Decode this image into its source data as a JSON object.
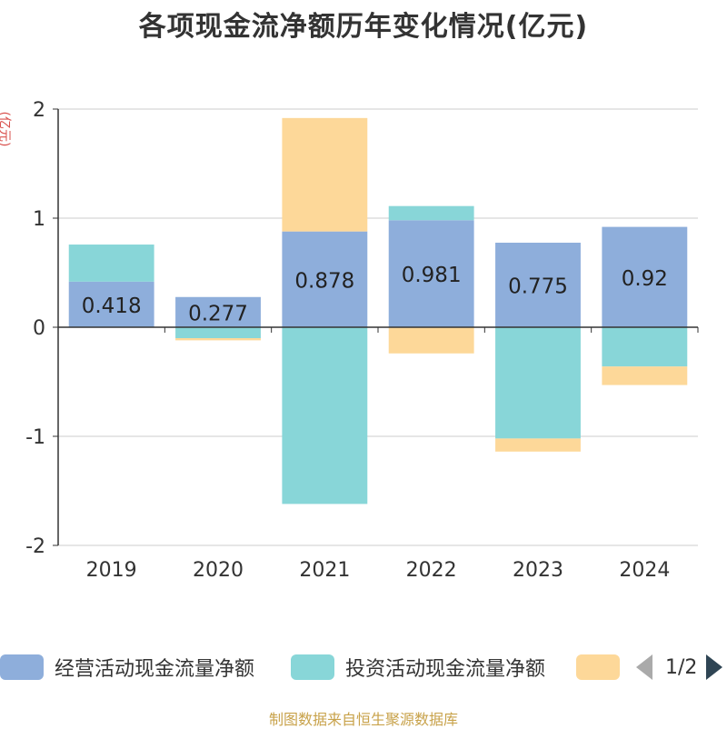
{
  "title": "各项现金流净额历年变化情况(亿元)",
  "unit_label": "(亿元)",
  "source": "制图数据来自恒生聚源数据库",
  "legend": {
    "items": [
      {
        "label": "经营活动现金流量净额",
        "color": "#8eaedb"
      },
      {
        "label": "投资活动现金流量净额",
        "color": "#88d6d8"
      },
      {
        "label": "",
        "color": "#fdd899"
      }
    ],
    "pager": "1/2"
  },
  "chart_data": {
    "type": "bar",
    "stacked": true,
    "categories": [
      "2019",
      "2020",
      "2021",
      "2022",
      "2023",
      "2024"
    ],
    "series": [
      {
        "name": "经营活动现金流量净额",
        "color": "#8eaedb",
        "values": [
          0.418,
          0.277,
          0.878,
          0.981,
          0.775,
          0.92
        ],
        "labels": [
          "0.418",
          "0.277",
          "0.878",
          "0.981",
          "0.775",
          "0.92"
        ]
      },
      {
        "name": "投资活动现金流量净额",
        "color": "#88d6d8",
        "values": [
          0.34,
          -0.1,
          -1.62,
          0.13,
          -1.02,
          -0.36
        ]
      },
      {
        "color": "#fdd899",
        "values": [
          0.0,
          -0.02,
          1.04,
          -0.24,
          -0.12,
          -0.17
        ]
      }
    ],
    "ylim": [
      -2,
      2
    ],
    "yticks": [
      -2,
      -1,
      0,
      1,
      2
    ],
    "grid": true
  }
}
